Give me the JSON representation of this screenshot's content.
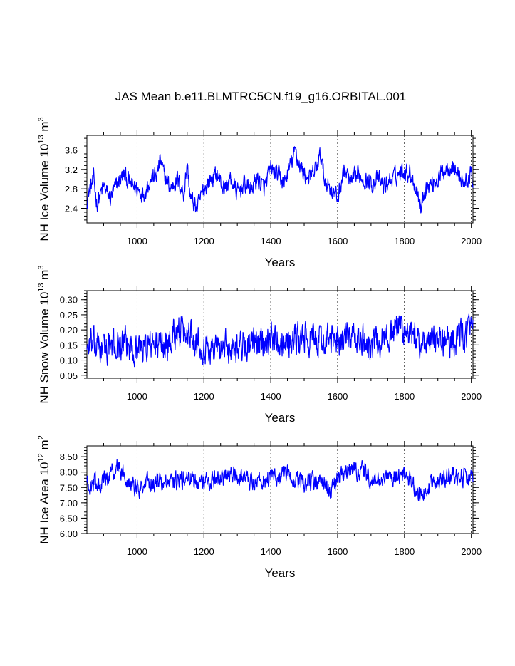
{
  "title": "JAS Mean b.e11.BLMTRC5CN.f19_g16.ORBITAL.001",
  "line_color": "#0000ff",
  "chart_data": [
    {
      "type": "line",
      "id": "ice-volume",
      "xlabel": "Years",
      "ylabel_main": "NH Ice Volume 10",
      "ylabel_exp": "13",
      "ylabel_unit": " m",
      "ylabel_unit_exp": "3",
      "xlim": [
        850,
        2005
      ],
      "ylim": [
        2.1,
        3.9
      ],
      "xticks": [
        1000,
        1200,
        1400,
        1600,
        1800,
        2000
      ],
      "xtick_labels": [
        "1000",
        "1200",
        "1400",
        "1600",
        "1800",
        "2000"
      ],
      "yticks": [
        2.4,
        2.8,
        3.2,
        3.6
      ],
      "ytick_labels": [
        "2.4",
        "2.8",
        "3.2",
        "3.6"
      ],
      "keypoints": {
        "x": [
          850,
          870,
          880,
          900,
          920,
          940,
          960,
          980,
          1000,
          1020,
          1040,
          1060,
          1070,
          1080,
          1100,
          1120,
          1140,
          1150,
          1160,
          1180,
          1200,
          1220,
          1240,
          1260,
          1280,
          1300,
          1320,
          1340,
          1360,
          1380,
          1400,
          1420,
          1440,
          1460,
          1475,
          1480,
          1500,
          1520,
          1540,
          1550,
          1560,
          1580,
          1600,
          1620,
          1640,
          1660,
          1680,
          1700,
          1720,
          1740,
          1760,
          1780,
          1800,
          1820,
          1840,
          1850,
          1860,
          1880,
          1900,
          1920,
          1940,
          1960,
          1980,
          2000,
          2005
        ],
        "y": [
          2.6,
          3.0,
          2.5,
          2.85,
          2.6,
          2.9,
          3.1,
          2.9,
          2.8,
          2.7,
          3.0,
          3.1,
          3.4,
          3.1,
          2.8,
          3.0,
          2.7,
          3.3,
          2.6,
          2.4,
          2.8,
          3.0,
          3.1,
          2.8,
          3.0,
          2.7,
          2.9,
          2.8,
          3.0,
          2.8,
          3.2,
          3.1,
          2.9,
          3.3,
          3.6,
          3.4,
          3.1,
          3.0,
          3.3,
          3.5,
          3.0,
          2.8,
          2.6,
          3.2,
          2.9,
          3.1,
          3.0,
          2.9,
          3.0,
          2.85,
          3.0,
          3.1,
          3.2,
          3.1,
          2.7,
          2.4,
          2.8,
          2.9,
          3.0,
          3.2,
          3.3,
          3.1,
          2.9,
          3.1,
          2.8
        ],
        "noise": 0.2,
        "min": 2.22,
        "max": 3.68
      }
    },
    {
      "type": "line",
      "id": "snow-volume",
      "xlabel": "Years",
      "ylabel_main": "NH Snow Volume 10",
      "ylabel_exp": "13",
      "ylabel_unit": " m",
      "ylabel_unit_exp": "3",
      "xlim": [
        850,
        2005
      ],
      "ylim": [
        0.04,
        0.33
      ],
      "xticks": [
        1000,
        1200,
        1400,
        1600,
        1800,
        2000
      ],
      "xtick_labels": [
        "1000",
        "1200",
        "1400",
        "1600",
        "1800",
        "2000"
      ],
      "yticks": [
        0.05,
        0.1,
        0.15,
        0.2,
        0.25,
        0.3
      ],
      "ytick_labels": [
        "0.05",
        "0.10",
        "0.15",
        "0.20",
        "0.25",
        "0.30"
      ],
      "keypoints": {
        "x": [
          850,
          900,
          950,
          1000,
          1050,
          1100,
          1110,
          1150,
          1155,
          1200,
          1250,
          1300,
          1350,
          1400,
          1450,
          1500,
          1550,
          1600,
          1650,
          1700,
          1750,
          1790,
          1800,
          1850,
          1900,
          1950,
          2000,
          2005
        ],
        "y": [
          0.15,
          0.14,
          0.15,
          0.14,
          0.15,
          0.15,
          0.2,
          0.18,
          0.2,
          0.14,
          0.14,
          0.15,
          0.15,
          0.18,
          0.16,
          0.17,
          0.16,
          0.17,
          0.17,
          0.15,
          0.18,
          0.22,
          0.19,
          0.16,
          0.16,
          0.17,
          0.2,
          0.18
        ],
        "noise": 0.055,
        "min": 0.055,
        "max": 0.315
      }
    },
    {
      "type": "line",
      "id": "ice-area",
      "xlabel": "Years",
      "ylabel_main": "NH Ice Area 10",
      "ylabel_exp": "12",
      "ylabel_unit": " m",
      "ylabel_unit_exp": "2",
      "xlim": [
        850,
        2005
      ],
      "ylim": [
        6.0,
        8.85
      ],
      "xticks": [
        1000,
        1200,
        1400,
        1600,
        1800,
        2000
      ],
      "xtick_labels": [
        "1000",
        "1200",
        "1400",
        "1600",
        "1800",
        "2000"
      ],
      "yticks": [
        6.0,
        6.5,
        7.0,
        7.5,
        8.0,
        8.5
      ],
      "ytick_labels": [
        "6.00",
        "6.50",
        "7.00",
        "7.50",
        "8.00",
        "8.50"
      ],
      "keypoints": {
        "x": [
          850,
          900,
          940,
          960,
          1000,
          1050,
          1100,
          1150,
          1200,
          1250,
          1300,
          1350,
          1400,
          1450,
          1500,
          1550,
          1580,
          1600,
          1650,
          1680,
          1700,
          1750,
          1800,
          1840,
          1850,
          1900,
          1950,
          2000,
          2005
        ],
        "y": [
          7.6,
          7.7,
          8.2,
          7.9,
          7.5,
          7.7,
          7.6,
          7.8,
          7.7,
          7.8,
          7.9,
          7.7,
          7.8,
          7.9,
          7.6,
          7.7,
          7.3,
          7.8,
          8.1,
          8.0,
          7.7,
          7.8,
          7.9,
          7.4,
          7.2,
          7.8,
          7.9,
          7.8,
          7.6
        ],
        "noise": 0.32,
        "min": 6.3,
        "max": 8.7
      }
    }
  ]
}
